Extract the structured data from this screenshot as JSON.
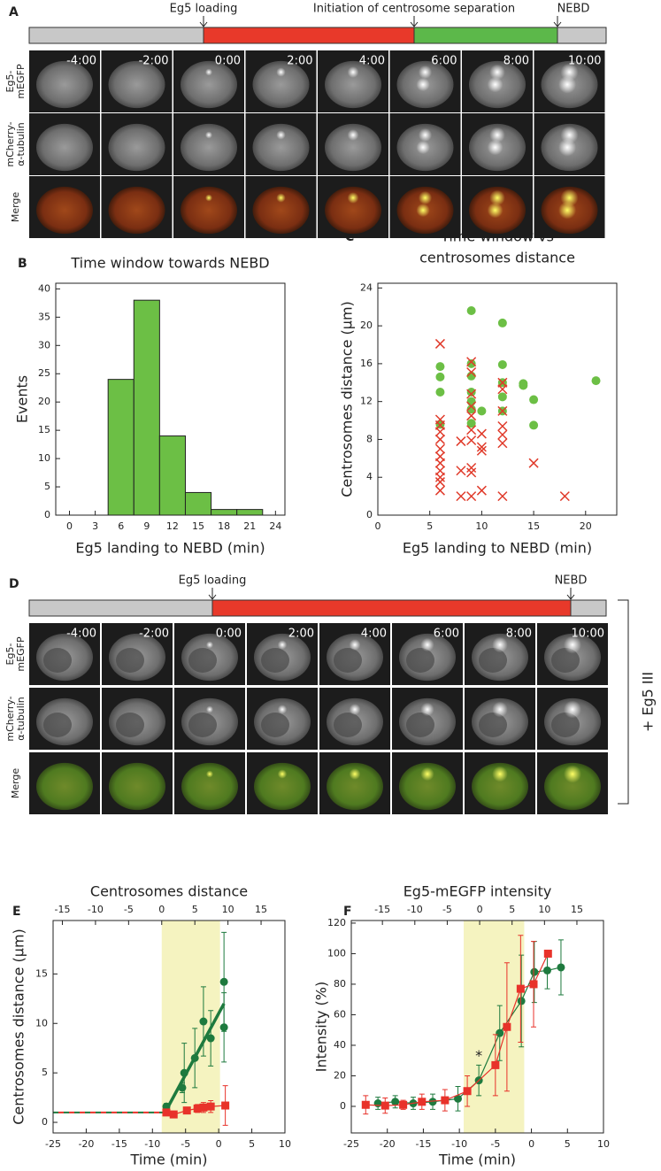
{
  "panel_a": {
    "label": "A",
    "timeline": [
      "Eg5 loading",
      "Initiation of centrosome separation",
      "NEBD"
    ],
    "time_labels": [
      "-4:00",
      "-2:00",
      "0:00",
      "2:00",
      "4:00",
      "6:00",
      "8:00",
      "10:00"
    ],
    "row_labels": [
      [
        "Eg5-",
        "mEGFP"
      ],
      [
        "mCherry-",
        "α-tubulin"
      ],
      [
        "Merge"
      ]
    ]
  },
  "panel_d": {
    "label": "D",
    "timeline": [
      "Eg5 loading",
      "NEBD"
    ],
    "time_labels": [
      "-4:00",
      "-2:00",
      "0:00",
      "2:00",
      "4:00",
      "6:00",
      "8:00",
      "10:00"
    ],
    "row_labels": [
      [
        "Eg5-",
        "mEGFP"
      ],
      [
        "mCherry-",
        "α-tubulin"
      ],
      [
        "Merge"
      ]
    ],
    "treatment": "+ Eg5 III"
  },
  "chart_data": [
    {
      "type": "histogram",
      "panel_label": "B",
      "title": [
        "Time window towards NEBD"
      ],
      "xlabel": "Eg5 landing to NEBD (min)",
      "ylabel": "Events",
      "color": "#6cbf45",
      "bins": [
        4.5,
        7.5,
        10.5,
        13.5,
        16.5,
        19.5,
        22.5
      ],
      "values": [
        24,
        38,
        14,
        4,
        1,
        1
      ],
      "xlim": [
        -1.6,
        25.1
      ],
      "xticks": [
        0,
        3,
        6,
        9,
        12,
        15,
        18,
        21,
        24
      ],
      "ylim": [
        0,
        41
      ],
      "yticks": [
        0,
        5,
        10,
        15,
        20,
        25,
        30,
        35,
        40
      ]
    },
    {
      "type": "scatter",
      "panel_label": "C",
      "title": [
        "Time window vs",
        "centrosomes distance"
      ],
      "xlabel": "Eg5 landing to NEBD (min)",
      "ylabel": "Centrosomes distance (μm)",
      "xlim": [
        0,
        23
      ],
      "xticks": [
        0,
        5,
        10,
        15,
        20
      ],
      "ylim": [
        0,
        24.5
      ],
      "yticks": [
        0,
        4,
        8,
        12,
        16,
        20,
        24
      ],
      "series": [
        {
          "color": "#6cbf45",
          "marker": "circle",
          "x": [
            6,
            6,
            6,
            6,
            9,
            9,
            9,
            9,
            9,
            9,
            9,
            10,
            12,
            12,
            12,
            12,
            12,
            14,
            14,
            15,
            15,
            21
          ],
          "values": [
            15.7,
            14.6,
            13,
            9.6,
            21.6,
            16,
            14.7,
            13,
            12,
            11.2,
            9.7,
            11,
            20.3,
            15.9,
            14,
            12.5,
            11,
            13.9,
            13.7,
            12.2,
            9.5,
            14.2
          ]
        },
        {
          "color": "#e03a2a",
          "marker": "x",
          "x": [
            6,
            6,
            6,
            6,
            6,
            6,
            6,
            6,
            6,
            6,
            6,
            6,
            8,
            8,
            8,
            9,
            9,
            9,
            9,
            9,
            9,
            9,
            9,
            9,
            9,
            10,
            10,
            10,
            10,
            12,
            12,
            12,
            12,
            12,
            12,
            12,
            15,
            18
          ],
          "values": [
            18.1,
            10.1,
            9.5,
            8.8,
            8,
            7,
            6.2,
            5.5,
            4.7,
            4,
            3.5,
            2.6,
            7.8,
            4.7,
            2,
            16.2,
            15.1,
            12.8,
            11.5,
            10.5,
            9,
            7.9,
            5,
            4.5,
            2,
            8.6,
            7.2,
            6.8,
            2.6,
            14,
            13.3,
            11,
            9.4,
            8.5,
            7.6,
            2,
            5.5,
            2
          ]
        }
      ]
    },
    {
      "type": "line",
      "panel_label": "E",
      "title": [
        "Centrosomes distance"
      ],
      "xlabel": "Time (min)",
      "ylabel": "Centrosomes distance (μm)",
      "xlim": [
        -25,
        10
      ],
      "xticks": [
        -25,
        -20,
        -15,
        -10,
        -5,
        0,
        5,
        10
      ],
      "x2lim": [
        -16.4,
        18.6
      ],
      "x2ticks": [
        -15,
        -10,
        -5,
        0,
        5,
        10,
        15
      ],
      "ylim": [
        -1.07,
        20.4
      ],
      "yticks": [
        0,
        5,
        10,
        15
      ],
      "highlight_x": [
        -8.6,
        0.2
      ],
      "series": [
        {
          "color": "#1e7a3e",
          "marker": "none",
          "dash": true,
          "x": [
            -25,
            -8.1
          ],
          "values": [
            1,
            1
          ]
        },
        {
          "color": "#e8322a",
          "marker": "none",
          "dash": true,
          "x": [
            -25,
            -8.1
          ],
          "values": [
            1,
            1
          ]
        },
        {
          "color": "#1e7a3e",
          "marker": "none",
          "line_width": 3.5,
          "x": [
            -8.1,
            0.8
          ],
          "values": [
            1,
            12
          ]
        },
        {
          "color": "#1e7a3e",
          "marker": "circle",
          "x": [
            -7.9,
            -5.5,
            -5.2,
            -3.6,
            -2.3,
            -1.2,
            0.8,
            0.8
          ],
          "values": [
            1.6,
            3.5,
            5,
            6.5,
            10.2,
            8.5,
            14.2,
            9.6
          ],
          "errors": [
            0.3,
            0.5,
            3,
            3,
            3.5,
            2.8,
            5,
            3.5
          ]
        },
        {
          "color": "#e8322a",
          "marker": "square",
          "line_width": 1.2,
          "x": [
            -7.9,
            -6.8,
            -4.8,
            -3.2,
            -2.3,
            -1.2,
            1
          ],
          "values": [
            1,
            0.8,
            1.2,
            1.4,
            1.5,
            1.6,
            1.7
          ],
          "errors": [
            0.2,
            0.2,
            0.3,
            0.4,
            0.5,
            0.6,
            2
          ]
        }
      ]
    },
    {
      "type": "line",
      "panel_label": "F",
      "title": [
        "Eg5-mEGFP intensity"
      ],
      "xlabel": "Time (min)",
      "ylabel": "Intensity (%)",
      "annotation": "*",
      "xlim": [
        -25,
        10
      ],
      "xticks": [
        -25,
        -20,
        -15,
        -10,
        -5,
        0,
        5,
        10
      ],
      "x2lim": [
        -19.8,
        19.1
      ],
      "x2ticks": [
        -15,
        -10,
        -5,
        0,
        5,
        10,
        15
      ],
      "ylim": [
        -17.4,
        121.7
      ],
      "yticks": [
        0,
        20,
        40,
        60,
        80,
        100,
        120
      ],
      "highlight_x": [
        -9.4,
        -1
      ],
      "series": [
        {
          "color": "#1e7a3e",
          "marker": "circle",
          "line_width": 1.2,
          "x": [
            -21.3,
            -18.9,
            -16.4,
            -13.7,
            -10.2,
            -7.3,
            -4.4,
            -1.4,
            0.4,
            2.2,
            4.1
          ],
          "values": [
            2,
            3,
            2,
            3,
            5,
            17,
            48,
            69,
            88,
            89,
            91
          ],
          "errors": [
            4,
            4,
            4,
            5,
            8,
            10,
            18,
            30,
            20,
            12,
            18
          ]
        },
        {
          "color": "#e8322a",
          "marker": "square",
          "line_width": 1.2,
          "x": [
            -23,
            -20.3,
            -17.8,
            -15.2,
            -12,
            -8.9,
            -5,
            -3.4,
            -1.5,
            0.3,
            2.3
          ],
          "values": [
            1,
            0.5,
            1,
            3,
            4,
            10,
            27,
            52,
            77,
            80,
            100
          ],
          "errors": [
            6,
            5,
            3,
            5,
            7,
            10,
            20,
            42,
            35,
            28,
            0
          ]
        }
      ]
    }
  ]
}
